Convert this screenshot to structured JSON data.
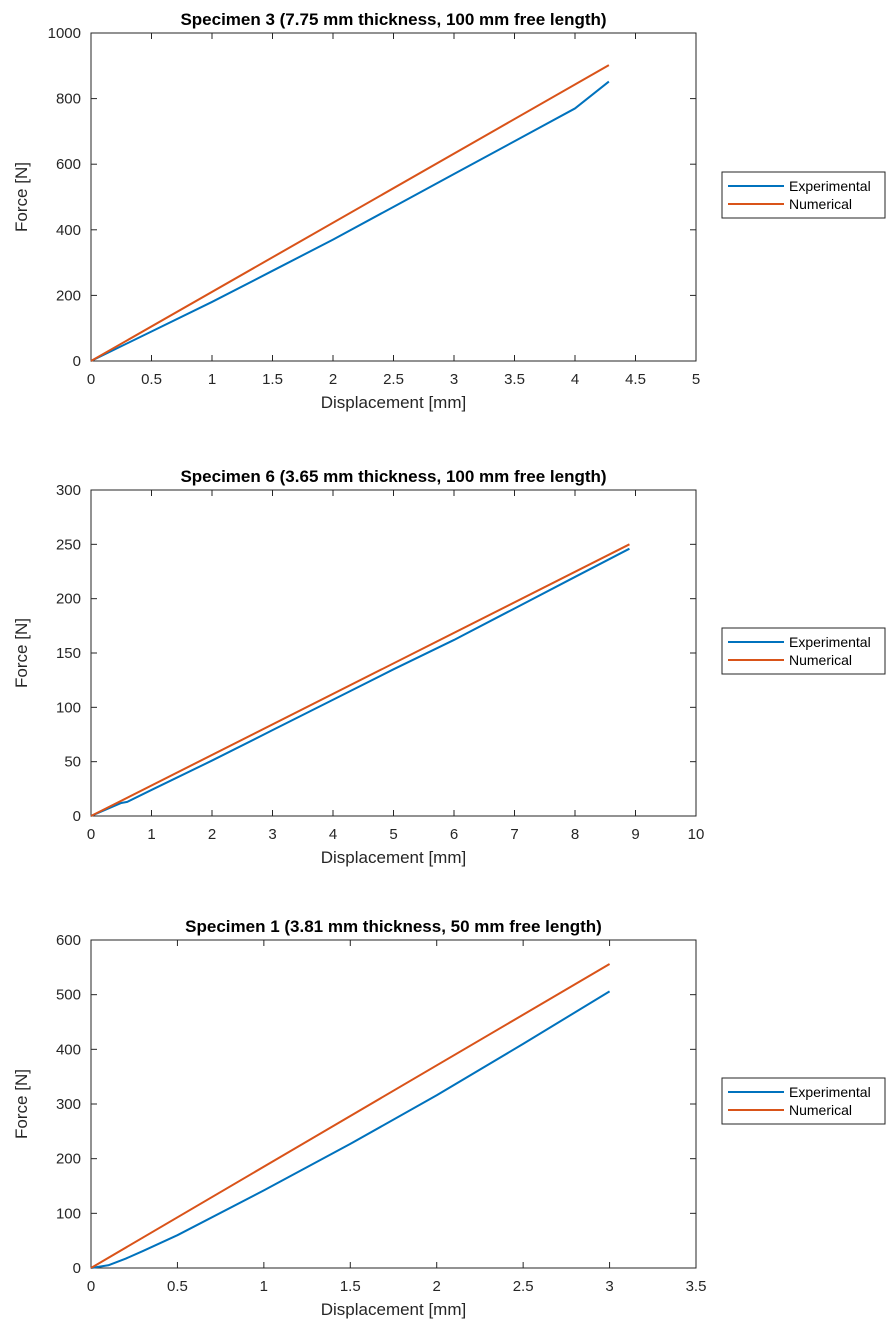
{
  "chart_data": [
    {
      "type": "line",
      "title": "Specimen 3 (7.75 mm thickness, 100 mm free length)",
      "xlabel": "Displacement [mm]",
      "ylabel": "Force [N]",
      "xlim": [
        0,
        5
      ],
      "ylim": [
        0,
        1000
      ],
      "xticks": [
        0,
        0.5,
        1,
        1.5,
        2,
        2.5,
        3,
        3.5,
        4,
        4.5,
        5
      ],
      "yticks": [
        0,
        200,
        400,
        600,
        800,
        1000
      ],
      "grid": false,
      "legend": "outside-right",
      "series": [
        {
          "name": "Experimental",
          "color": "#0072BD",
          "x": [
            0,
            0.5,
            1,
            1.5,
            2,
            2.5,
            3,
            3.5,
            4,
            4.28
          ],
          "y": [
            0,
            90,
            180,
            275,
            370,
            470,
            570,
            670,
            770,
            852
          ]
        },
        {
          "name": "Numerical",
          "color": "#D95319",
          "x": [
            0,
            4.28
          ],
          "y": [
            0,
            902
          ]
        }
      ]
    },
    {
      "type": "line",
      "title": "Specimen 6 (3.65 mm thickness, 100 mm free length)",
      "xlabel": "Displacement [mm]",
      "ylabel": "Force [N]",
      "xlim": [
        0,
        10
      ],
      "ylim": [
        0,
        300
      ],
      "xticks": [
        0,
        1,
        2,
        3,
        4,
        5,
        6,
        7,
        8,
        9,
        10
      ],
      "yticks": [
        0,
        50,
        100,
        150,
        200,
        250,
        300
      ],
      "grid": false,
      "legend": "outside-right",
      "series": [
        {
          "name": "Experimental",
          "color": "#0072BD",
          "x": [
            0,
            0.5,
            0.6,
            1,
            2,
            3,
            4,
            5,
            6,
            7,
            8,
            8.9
          ],
          "y": [
            0,
            12,
            13,
            24,
            51,
            79,
            107,
            135,
            162,
            191,
            220,
            246
          ]
        },
        {
          "name": "Numerical",
          "color": "#D95319",
          "x": [
            0,
            8.9
          ],
          "y": [
            0,
            250
          ]
        }
      ]
    },
    {
      "type": "line",
      "title": "Specimen 1 (3.81 mm thickness, 50 mm free length)",
      "xlabel": "Displacement [mm]",
      "ylabel": "Force [N]",
      "xlim": [
        0,
        3.5
      ],
      "ylim": [
        0,
        600
      ],
      "xticks": [
        0,
        0.5,
        1,
        1.5,
        2,
        2.5,
        3,
        3.5
      ],
      "yticks": [
        0,
        100,
        200,
        300,
        400,
        500,
        600
      ],
      "grid": false,
      "legend": "outside-right",
      "series": [
        {
          "name": "Experimental",
          "color": "#0072BD",
          "x": [
            0,
            0.1,
            0.2,
            0.3,
            0.5,
            1,
            1.5,
            2,
            2.5,
            3
          ],
          "y": [
            0,
            5,
            17,
            31,
            60,
            142,
            227,
            316,
            410,
            506
          ]
        },
        {
          "name": "Numerical",
          "color": "#D95319",
          "x": [
            0,
            3
          ],
          "y": [
            0,
            556
          ]
        }
      ]
    }
  ]
}
